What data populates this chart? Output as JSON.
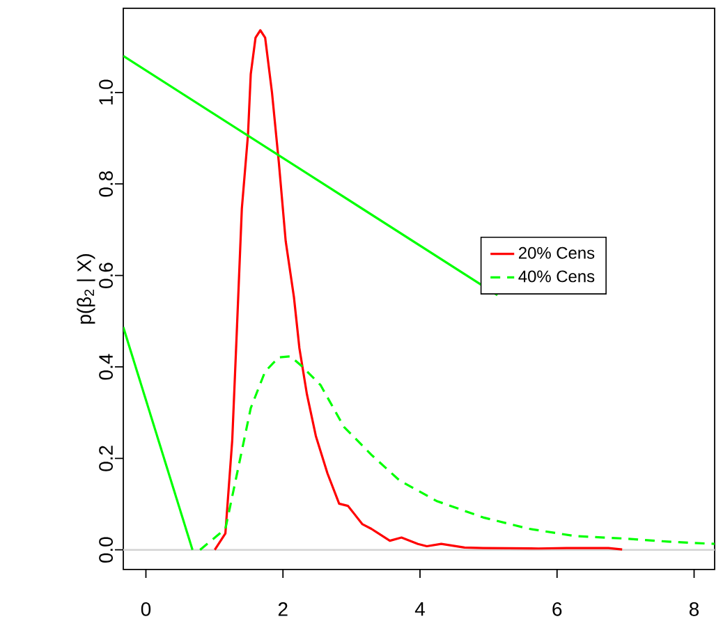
{
  "chart_data": {
    "type": "line",
    "ylabel": "p(β$_{2}$ | X)",
    "xlim": [
      -0.33,
      8.3
    ],
    "ylim": [
      -0.043,
      1.184
    ],
    "xticks": [
      0,
      2,
      4,
      6,
      8
    ],
    "yticks": [
      {
        "value": 0,
        "label": "0.0"
      },
      {
        "value": 0.2,
        "label": "0.2"
      },
      {
        "value": 0.4,
        "label": "0.4"
      },
      {
        "value": 0.6,
        "label": "0.6"
      },
      {
        "value": 0.8,
        "label": "0.8"
      },
      {
        "value": 1.0,
        "label": "1.0"
      }
    ],
    "grid": false,
    "legend": "right",
    "marker": "none",
    "ref_lines": [
      {
        "axis": "y",
        "value": 0,
        "color": "#d3d3d3"
      }
    ],
    "series": [
      {
        "name": "20% Cens",
        "color": "#ff0000",
        "line_style": "solid",
        "x": [
          1.005,
          1.16,
          1.26,
          1.33,
          1.4,
          1.49,
          1.53,
          1.6,
          1.67,
          1.74,
          1.84,
          1.94,
          2.04,
          2.16,
          2.24,
          2.35,
          2.48,
          2.65,
          2.82,
          2.95,
          3.16,
          3.29,
          3.56,
          3.73,
          3.97,
          4.1,
          4.31,
          4.65,
          4.92,
          5.73,
          6.14,
          6.75,
          6.95
        ],
        "values": [
          0.0,
          0.036,
          0.24,
          0.49,
          0.746,
          0.908,
          1.04,
          1.12,
          1.136,
          1.12,
          1.0,
          0.847,
          0.675,
          0.553,
          0.441,
          0.34,
          0.249,
          0.167,
          0.101,
          0.096,
          0.056,
          0.046,
          0.02,
          0.027,
          0.013,
          0.008,
          0.013,
          0.005,
          0.004,
          0.003,
          0.004,
          0.004,
          0.001
        ]
      },
      {
        "name": "40% Cens",
        "color": "#00ff00",
        "line_style": "dashed",
        "x": [
          0.79,
          1.16,
          1.36,
          1.53,
          1.74,
          1.94,
          2.11,
          2.28,
          2.55,
          2.89,
          3.29,
          3.7,
          4.24,
          4.92,
          5.59,
          6.27,
          6.95,
          7.62,
          8.3
        ],
        "values": [
          0.0,
          0.046,
          0.188,
          0.31,
          0.39,
          0.421,
          0.423,
          0.401,
          0.36,
          0.269,
          0.208,
          0.152,
          0.107,
          0.071,
          0.046,
          0.03,
          0.025,
          0.018,
          0.013
        ]
      },
      {
        "color": "#00ff00",
        "line_style": "solid",
        "x": [
          -0.33,
          5.13
        ],
        "values": [
          1.08,
          0.557
        ]
      },
      {
        "color": "#00ff00",
        "line_style": "solid",
        "x": [
          -0.33,
          0.68
        ],
        "values": [
          0.487,
          0.0
        ]
      }
    ]
  }
}
